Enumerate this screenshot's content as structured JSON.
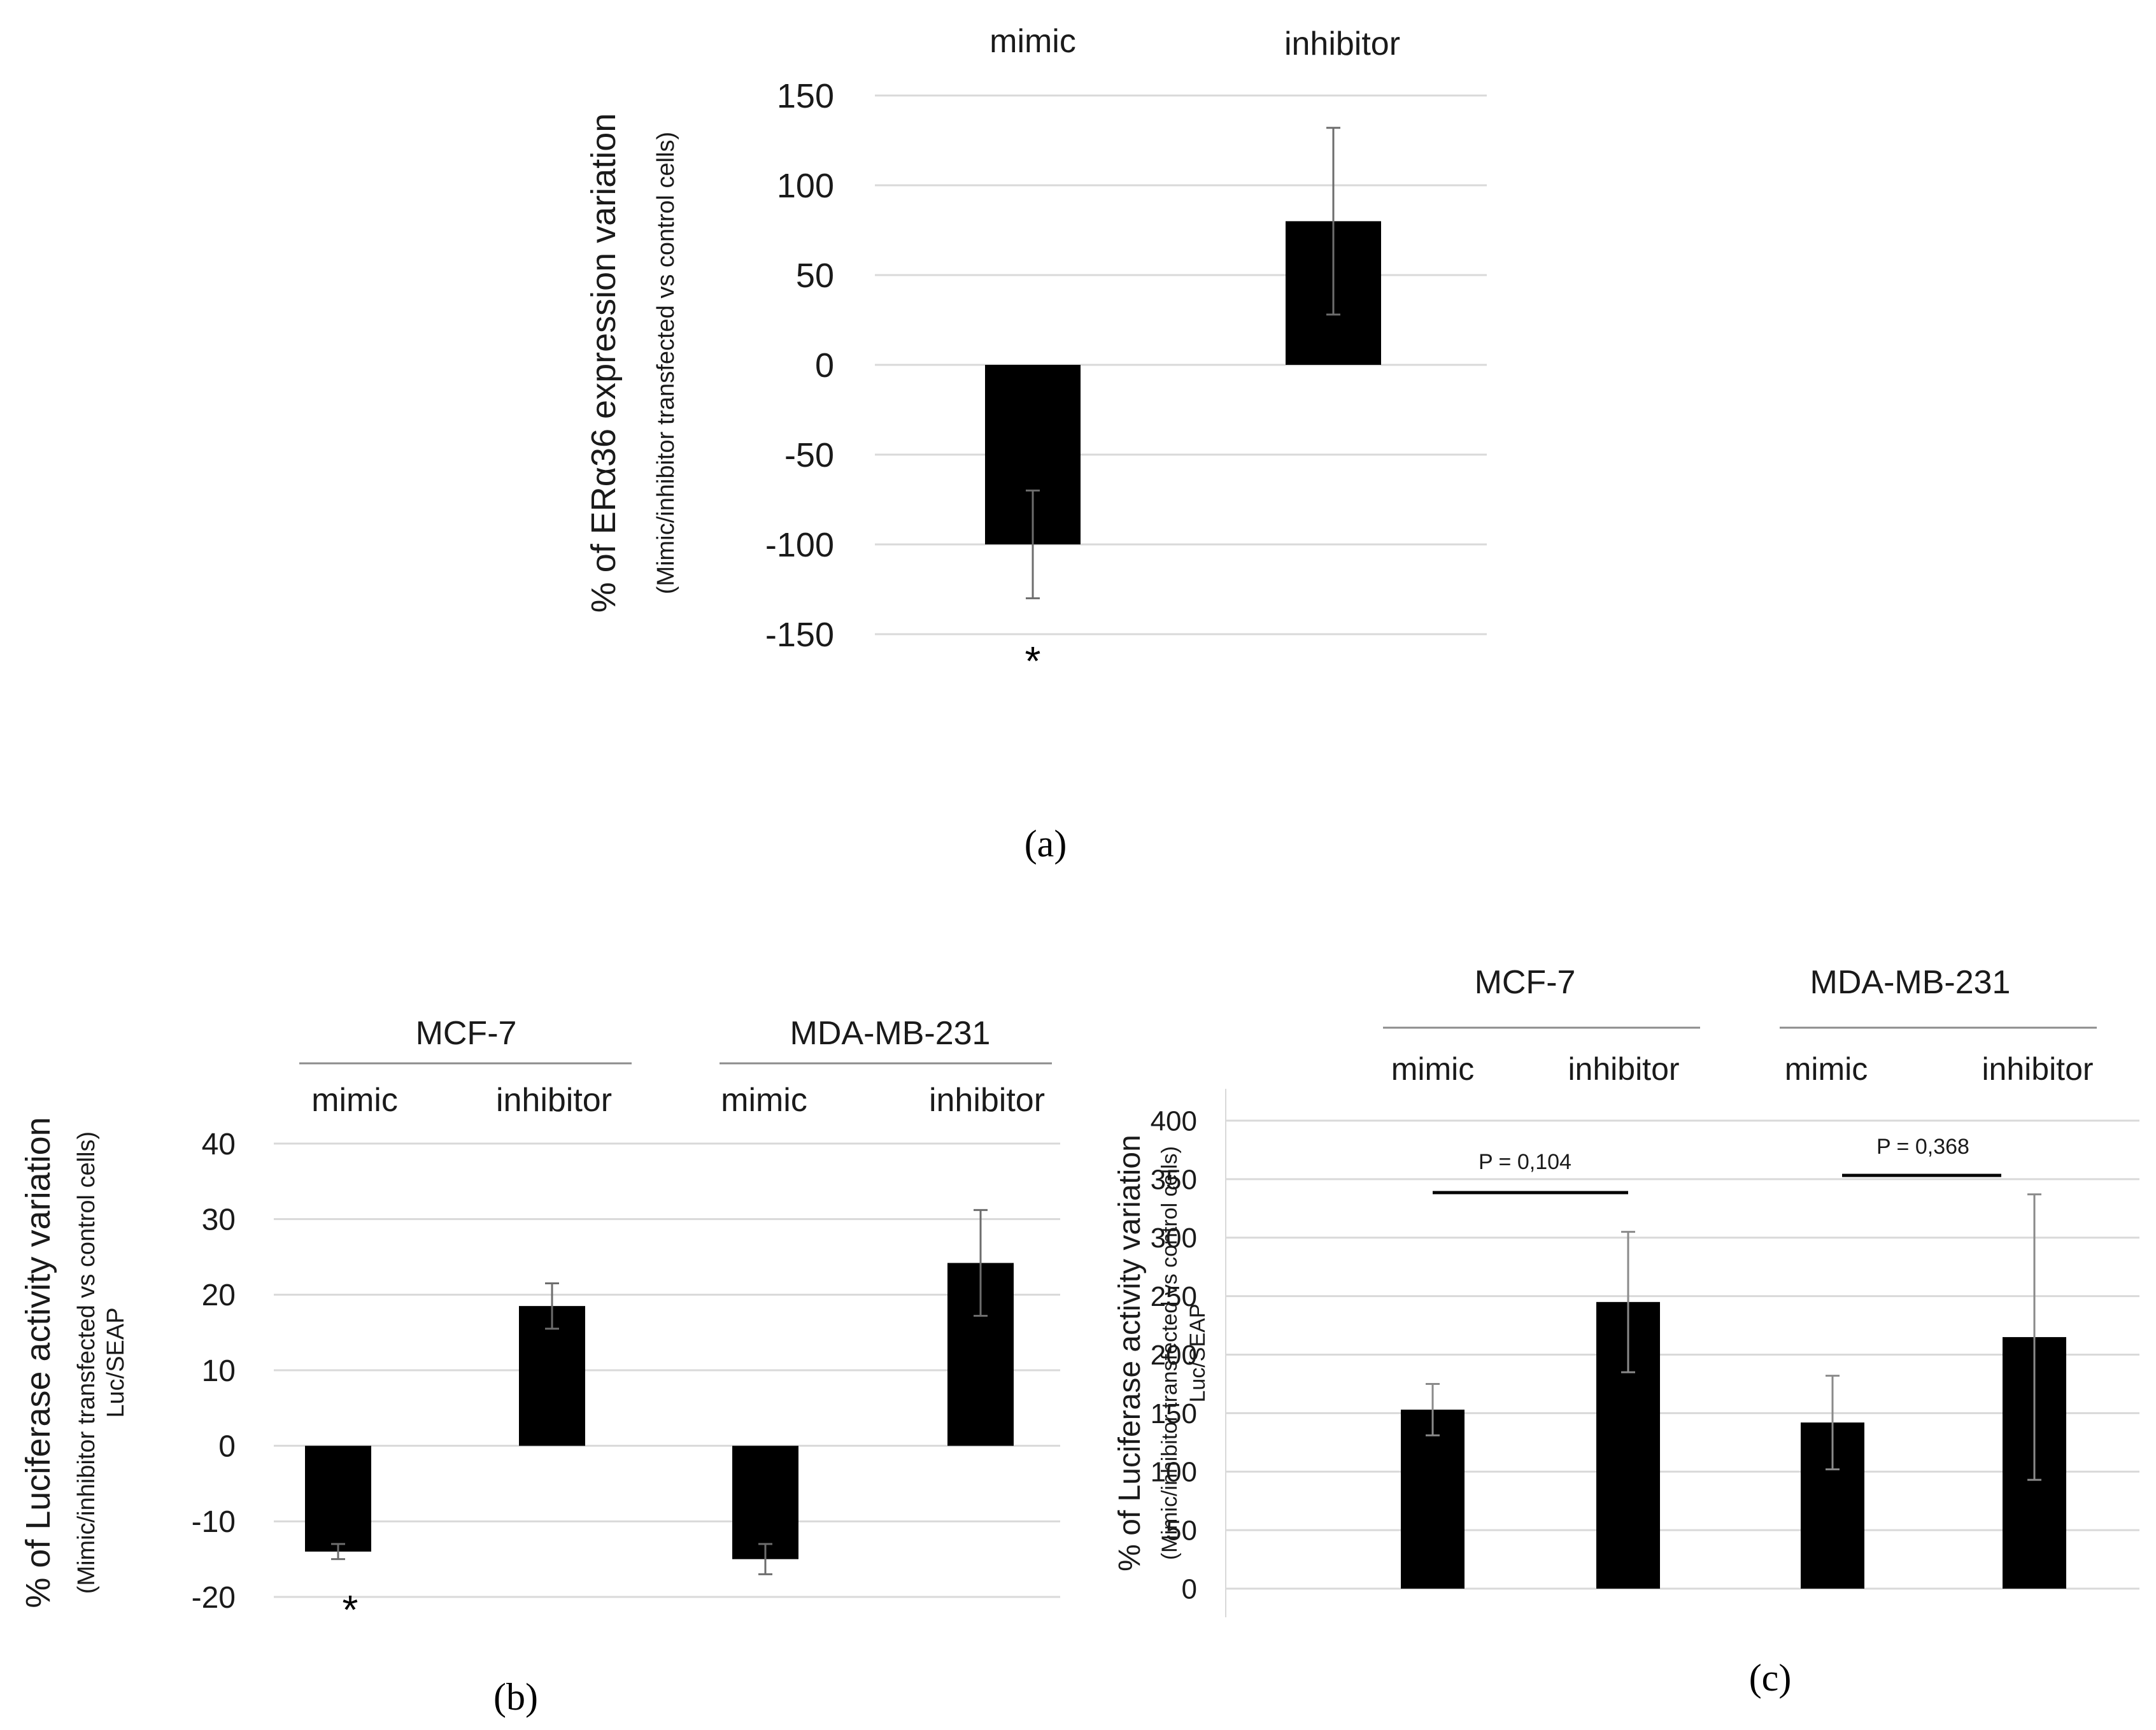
{
  "chart_data": [
    {
      "panel": "(a)",
      "type": "bar",
      "categories": [
        "mimic",
        "inhibitor"
      ],
      "values": [
        -100,
        80
      ],
      "errors": [
        30,
        52
      ],
      "ylim": [
        -150,
        150
      ],
      "yticks": [
        150,
        100,
        50,
        0,
        -50,
        -100,
        -150
      ],
      "ylabel": "% of ERα36 expression variation",
      "ylabel_sub": "(Mimic/inhibitor transfected vs control cells)",
      "annotations": [
        "*"
      ],
      "grid": true,
      "color": "#000000"
    },
    {
      "panel": "(b)",
      "type": "bar",
      "groups": [
        "MCF-7",
        "MDA-MB-231"
      ],
      "categories": [
        "mimic",
        "inhibitor",
        "mimic",
        "inhibitor"
      ],
      "values": [
        -14,
        18.5,
        -15,
        24.2
      ],
      "errors": [
        1,
        3,
        2,
        7
      ],
      "ylim": [
        -20,
        40
      ],
      "yticks": [
        40,
        30,
        20,
        10,
        0,
        -10,
        -20
      ],
      "ylabel": "% of Luciferase activity variation",
      "ylabel_sub": "(Mimic/inhibitor transfected vs control cells)",
      "ylabel_sub2": "Luc/SEAP",
      "annotations": [
        "*"
      ],
      "grid": true,
      "color": "#000000"
    },
    {
      "panel": "(c)",
      "type": "bar",
      "groups": [
        "MCF-7",
        "MDA-MB-231"
      ],
      "categories": [
        "mimic",
        "inhibitor",
        "mimic",
        "inhibitor"
      ],
      "values": [
        153,
        245,
        142,
        215
      ],
      "errors": [
        22,
        60,
        40,
        122
      ],
      "ylim": [
        0,
        400
      ],
      "yticks": [
        400,
        350,
        300,
        250,
        200,
        150,
        100,
        50,
        0
      ],
      "ylabel": "% of Luciferase activity variation",
      "ylabel_sub": "(Mimic/inhibitor transfected vs control cells)",
      "ylabel_sub2": "Luc/SEAP",
      "annotations": [
        "P = 0,104",
        "P = 0,368"
      ],
      "grid": true,
      "color": "#000000"
    }
  ]
}
